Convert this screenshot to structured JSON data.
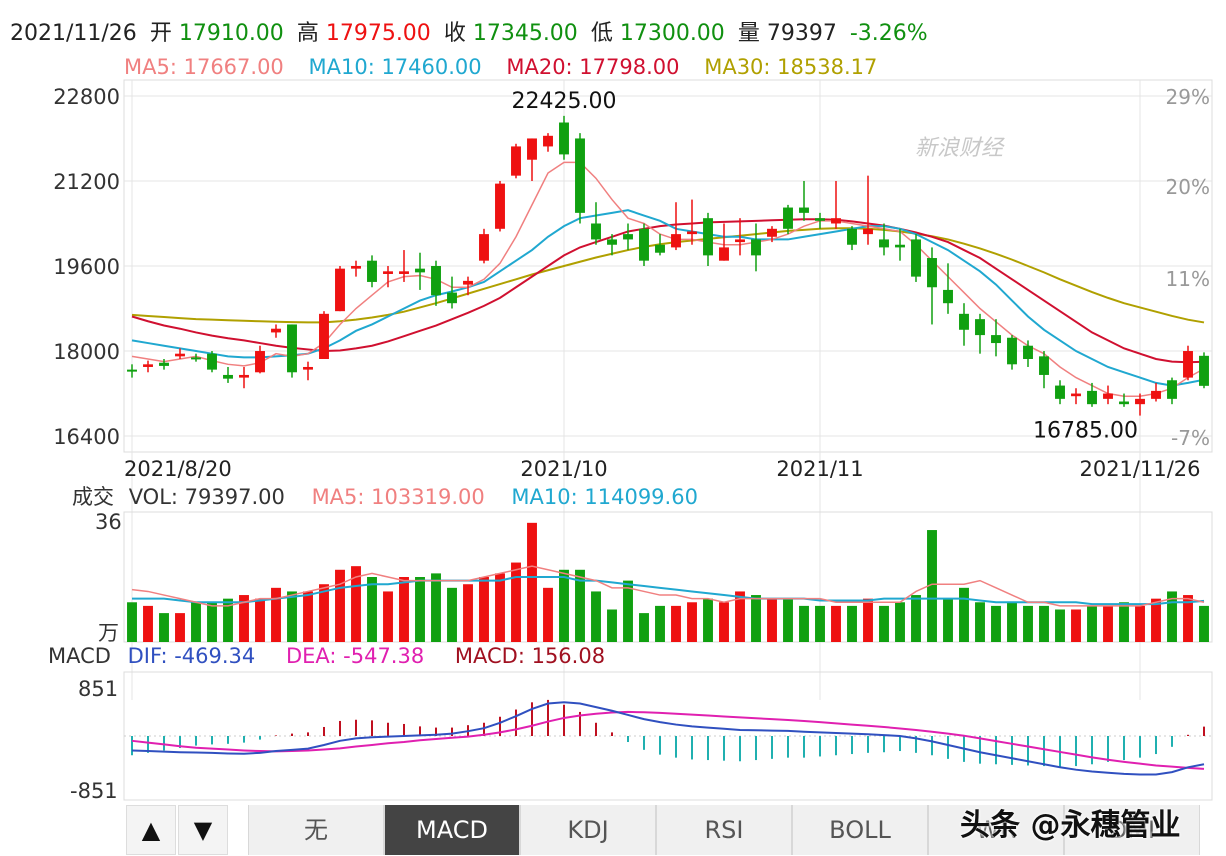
{
  "header": {
    "date": "2021/11/26",
    "open_label": "开",
    "open": "17910.00",
    "high_label": "高",
    "high": "17975.00",
    "close_label": "收",
    "close": "17345.00",
    "low_label": "低",
    "low": "17300.00",
    "volume_label": "量",
    "volume": "79397",
    "change": "-3.26%"
  },
  "ma_legend": {
    "ma5": "MA5: 17667.00",
    "ma10": "MA10: 17460.00",
    "ma20": "MA20: 17798.00",
    "ma30": "MA30: 18538.17"
  },
  "vol_legend": {
    "title": "成交",
    "vol": "VOL: 79397.00",
    "ma5": "MA5: 103319.00",
    "ma10": "MA10: 114099.60",
    "unit": "万",
    "top": "36"
  },
  "macd_legend": {
    "title": "MACD",
    "dif": "DIF: -469.34",
    "dea": "DEA: -547.38",
    "macd": "MACD: 156.08",
    "top": "851",
    "bottom": "-851"
  },
  "annotations": {
    "high": "22425.00",
    "low": "16785.00"
  },
  "watermark": "新浪财经",
  "corner_watermark": "头条 @永穗管业",
  "tabs": [
    "无",
    "MACD",
    "KDJ",
    "RSI",
    "BOLL",
    "WR",
    "DMI"
  ],
  "active_tab": "MACD",
  "arrows": [
    "▲",
    "▼"
  ],
  "colors": {
    "up": "#ee1111",
    "down": "#10a010",
    "ma5": "#f08080",
    "ma10": "#20a8d0",
    "ma20": "#d01030",
    "ma30": "#b0a000",
    "dif": "#3050c0",
    "dea": "#e020b0",
    "grid": "#e4e4e4"
  },
  "chart_data": {
    "type": "candlestick",
    "price_axis": {
      "ticks": [
        22800,
        21200,
        19600,
        18000,
        16400
      ],
      "range": [
        16100,
        23100
      ]
    },
    "pct_axis": {
      "ticks": [
        "29%",
        "20%",
        "11%",
        "-7%"
      ]
    },
    "date_labels": [
      {
        "label": "2021/8/20",
        "index": 0
      },
      {
        "label": "2021/10",
        "index": 27
      },
      {
        "label": "2021/11",
        "index": 43
      },
      {
        "label": "2021/11/26",
        "index": 63
      }
    ],
    "candles": [
      [
        17650,
        17750,
        17500,
        17620
      ],
      [
        17700,
        17820,
        17600,
        17750
      ],
      [
        17780,
        17850,
        17650,
        17720
      ],
      [
        17900,
        18050,
        17850,
        17950
      ],
      [
        17880,
        17950,
        17800,
        17850
      ],
      [
        17950,
        18000,
        17600,
        17650
      ],
      [
        17550,
        17700,
        17400,
        17480
      ],
      [
        17500,
        17700,
        17300,
        17550
      ],
      [
        17600,
        18100,
        17580,
        18000
      ],
      [
        18350,
        18500,
        18250,
        18420
      ],
      [
        18500,
        18500,
        17500,
        17600
      ],
      [
        17650,
        17800,
        17450,
        17700
      ],
      [
        17850,
        18750,
        17850,
        18700
      ],
      [
        18750,
        19600,
        18750,
        19550
      ],
      [
        19550,
        19700,
        19400,
        19600
      ],
      [
        19700,
        19800,
        19200,
        19300
      ],
      [
        19450,
        19600,
        19200,
        19500
      ],
      [
        19450,
        19900,
        19300,
        19500
      ],
      [
        19550,
        19850,
        19150,
        19480
      ],
      [
        19600,
        19700,
        18850,
        19050
      ],
      [
        19100,
        19400,
        18800,
        18900
      ],
      [
        19250,
        19400,
        19050,
        19320
      ],
      [
        19700,
        20300,
        19650,
        20200
      ],
      [
        20300,
        21200,
        20250,
        21150
      ],
      [
        21300,
        21900,
        21250,
        21850
      ],
      [
        21600,
        22000,
        21200,
        22000
      ],
      [
        21850,
        22100,
        21750,
        22050
      ],
      [
        22300,
        22425,
        21600,
        21700
      ],
      [
        22000,
        22100,
        20400,
        20600
      ],
      [
        20400,
        20800,
        20000,
        20100
      ],
      [
        20100,
        20200,
        19800,
        20000
      ],
      [
        20200,
        20400,
        19900,
        20100
      ],
      [
        20300,
        20400,
        19600,
        19700
      ],
      [
        20000,
        20200,
        19800,
        19850
      ],
      [
        19950,
        20800,
        19900,
        20200
      ],
      [
        20200,
        20850,
        20000,
        20250
      ],
      [
        20500,
        20600,
        19600,
        19800
      ],
      [
        19700,
        20400,
        19700,
        19950
      ],
      [
        20050,
        20500,
        19800,
        20100
      ],
      [
        20100,
        20400,
        19500,
        19800
      ],
      [
        20150,
        20350,
        20050,
        20300
      ],
      [
        20700,
        20750,
        20200,
        20300
      ],
      [
        20700,
        21200,
        20450,
        20600
      ],
      [
        20500,
        20600,
        20300,
        20450
      ],
      [
        20400,
        21200,
        20300,
        20500
      ],
      [
        20300,
        20350,
        19900,
        20000
      ],
      [
        20200,
        21300,
        20000,
        20300
      ],
      [
        20100,
        20400,
        19800,
        19950
      ],
      [
        20000,
        20300,
        19700,
        19950
      ],
      [
        20100,
        20200,
        19300,
        19400
      ],
      [
        19750,
        19950,
        18500,
        19200
      ],
      [
        19150,
        19650,
        18700,
        18900
      ],
      [
        18700,
        18900,
        18100,
        18400
      ],
      [
        18600,
        18700,
        17950,
        18300
      ],
      [
        18300,
        18600,
        17900,
        18150
      ],
      [
        18250,
        18300,
        17650,
        17750
      ],
      [
        18100,
        18200,
        17700,
        17850
      ],
      [
        17900,
        18000,
        17300,
        17550
      ],
      [
        17350,
        17450,
        17000,
        17100
      ],
      [
        17150,
        17300,
        17000,
        17200
      ],
      [
        17250,
        17400,
        16950,
        17000
      ],
      [
        17100,
        17350,
        17000,
        17200
      ],
      [
        17050,
        17200,
        16950,
        17000
      ],
      [
        17000,
        17200,
        16785,
        17100
      ],
      [
        17100,
        17400,
        17050,
        17250
      ],
      [
        17450,
        17500,
        17000,
        17100
      ],
      [
        17500,
        18100,
        17450,
        18000
      ],
      [
        17910,
        17975,
        17300,
        17345
      ]
    ],
    "ma5": [
      17900,
      17850,
      17800,
      17850,
      17900,
      17820,
      17750,
      17720,
      17780,
      17950,
      17900,
      17950,
      18150,
      18500,
      18800,
      19050,
      19300,
      19400,
      19420,
      19350,
      19200,
      19200,
      19350,
      19650,
      20150,
      20750,
      21350,
      21550,
      21550,
      21250,
      20850,
      20500,
      20400,
      20200,
      20100,
      20100,
      20050,
      20000,
      20000,
      20050,
      20100,
      20200,
      20350,
      20450,
      20450,
      20400,
      20350,
      20300,
      20250,
      20000,
      19700,
      19400,
      19100,
      18800,
      18550,
      18300,
      18100,
      17950,
      17700,
      17500,
      17350,
      17200,
      17150,
      17150,
      17200,
      17300,
      17500,
      17667
    ],
    "ma10": [
      18200,
      18150,
      18100,
      18050,
      18000,
      17950,
      17900,
      17880,
      17880,
      17900,
      17920,
      17950,
      18050,
      18200,
      18380,
      18500,
      18650,
      18800,
      18950,
      19050,
      19120,
      19200,
      19300,
      19500,
      19700,
      19900,
      20150,
      20350,
      20500,
      20550,
      20600,
      20650,
      20550,
      20450,
      20300,
      20250,
      20200,
      20150,
      20150,
      20100,
      20100,
      20100,
      20150,
      20200,
      20250,
      20300,
      20350,
      20350,
      20300,
      20200,
      20050,
      19900,
      19700,
      19500,
      19250,
      18950,
      18650,
      18400,
      18200,
      18000,
      17850,
      17700,
      17600,
      17500,
      17400,
      17350,
      17400,
      17460
    ],
    "ma20": [
      18650,
      18560,
      18480,
      18420,
      18350,
      18290,
      18240,
      18200,
      18150,
      18100,
      18060,
      18030,
      18000,
      18010,
      18050,
      18100,
      18180,
      18280,
      18380,
      18480,
      18600,
      18720,
      18850,
      19000,
      19200,
      19400,
      19600,
      19800,
      19950,
      20050,
      20150,
      20250,
      20300,
      20350,
      20380,
      20400,
      20420,
      20430,
      20440,
      20450,
      20460,
      20470,
      20480,
      20480,
      20470,
      20440,
      20400,
      20360,
      20300,
      20230,
      20150,
      20050,
      19900,
      19750,
      19550,
      19350,
      19150,
      18950,
      18750,
      18550,
      18350,
      18200,
      18050,
      17950,
      17850,
      17800,
      17790,
      17798
    ],
    "ma30": [
      18680,
      18660,
      18640,
      18620,
      18600,
      18590,
      18580,
      18570,
      18560,
      18550,
      18545,
      18540,
      18540,
      18560,
      18590,
      18630,
      18680,
      18740,
      18820,
      18900,
      18990,
      19080,
      19170,
      19260,
      19350,
      19440,
      19520,
      19600,
      19680,
      19760,
      19830,
      19900,
      19960,
      20010,
      20050,
      20080,
      20110,
      20140,
      20170,
      20200,
      20230,
      20260,
      20280,
      20300,
      20310,
      20310,
      20300,
      20280,
      20250,
      20210,
      20160,
      20100,
      20020,
      19930,
      19830,
      19720,
      19600,
      19480,
      19350,
      19230,
      19110,
      19000,
      18900,
      18820,
      18740,
      18660,
      18590,
      18538
    ],
    "volume": [
      11,
      10,
      8,
      8,
      11,
      11,
      12,
      13,
      12,
      15,
      14,
      14,
      16,
      20,
      21,
      18,
      14,
      18,
      18,
      19,
      15,
      16,
      18,
      19,
      22,
      33,
      15,
      20,
      20,
      14,
      9,
      17,
      8,
      10,
      10,
      11,
      12,
      11,
      14,
      13,
      12,
      12,
      10,
      10,
      10,
      10,
      12,
      10,
      11,
      13,
      31,
      12,
      15,
      11,
      10,
      11,
      10,
      10,
      9,
      9,
      10,
      10,
      11,
      10,
      12,
      14,
      13,
      10
    ],
    "volume_ma5": [
      14.5,
      14,
      13,
      12,
      11,
      10,
      10,
      11,
      12,
      12,
      13,
      14,
      15,
      16,
      18,
      19,
      18,
      17,
      17,
      17,
      17,
      17,
      18,
      19,
      20,
      21,
      20,
      19,
      18,
      17,
      15,
      15,
      14,
      13,
      13,
      12,
      12,
      11,
      12,
      12,
      12,
      12,
      12,
      12,
      11,
      11,
      11,
      11,
      11,
      14,
      16,
      16,
      16,
      17,
      15,
      13,
      11,
      11,
      10,
      10,
      10,
      10,
      10,
      10,
      11,
      12,
      12,
      11
    ],
    "volume_ma10": [
      12,
      12,
      12,
      11.5,
      11,
      11,
      11,
      11,
      11.5,
      12,
      12.5,
      13,
      14,
      15,
      15.5,
      16,
      16,
      16.5,
      17,
      17,
      17,
      17,
      17,
      17,
      18,
      18,
      18,
      18,
      17,
      17,
      16.5,
      16,
      15.5,
      15,
      14.5,
      14,
      13.5,
      13,
      12.5,
      12,
      12,
      12,
      12,
      11.5,
      11.5,
      11.5,
      11.5,
      12,
      12,
      12,
      12,
      12,
      12,
      11.5,
      11,
      11,
      11,
      11,
      11,
      11,
      10.5,
      10.5,
      10.5,
      10.5,
      10.5,
      11,
      11,
      11.4
    ],
    "dif": [
      -240,
      -250,
      -260,
      -270,
      -275,
      -280,
      -290,
      -295,
      -280,
      -250,
      -230,
      -210,
      -150,
      -80,
      -40,
      -20,
      -10,
      0,
      10,
      20,
      40,
      80,
      130,
      220,
      330,
      450,
      540,
      560,
      540,
      480,
      420,
      350,
      280,
      230,
      190,
      160,
      140,
      120,
      100,
      95,
      90,
      85,
      70,
      60,
      50,
      40,
      30,
      15,
      0,
      -40,
      -90,
      -150,
      -210,
      -270,
      -320,
      -370,
      -420,
      -470,
      -520,
      -560,
      -590,
      -610,
      -630,
      -640,
      -640,
      -600,
      -520,
      -469
    ],
    "dea": [
      -80,
      -110,
      -140,
      -170,
      -195,
      -210,
      -225,
      -240,
      -250,
      -255,
      -250,
      -240,
      -225,
      -205,
      -175,
      -150,
      -120,
      -100,
      -70,
      -50,
      -30,
      -10,
      20,
      60,
      110,
      170,
      240,
      300,
      340,
      370,
      390,
      400,
      395,
      385,
      370,
      355,
      340,
      325,
      310,
      295,
      280,
      265,
      250,
      230,
      210,
      190,
      170,
      150,
      125,
      100,
      70,
      40,
      5,
      -40,
      -85,
      -130,
      -175,
      -220,
      -265,
      -310,
      -355,
      -395,
      -430,
      -460,
      -490,
      -510,
      -530,
      -547
    ]
  }
}
